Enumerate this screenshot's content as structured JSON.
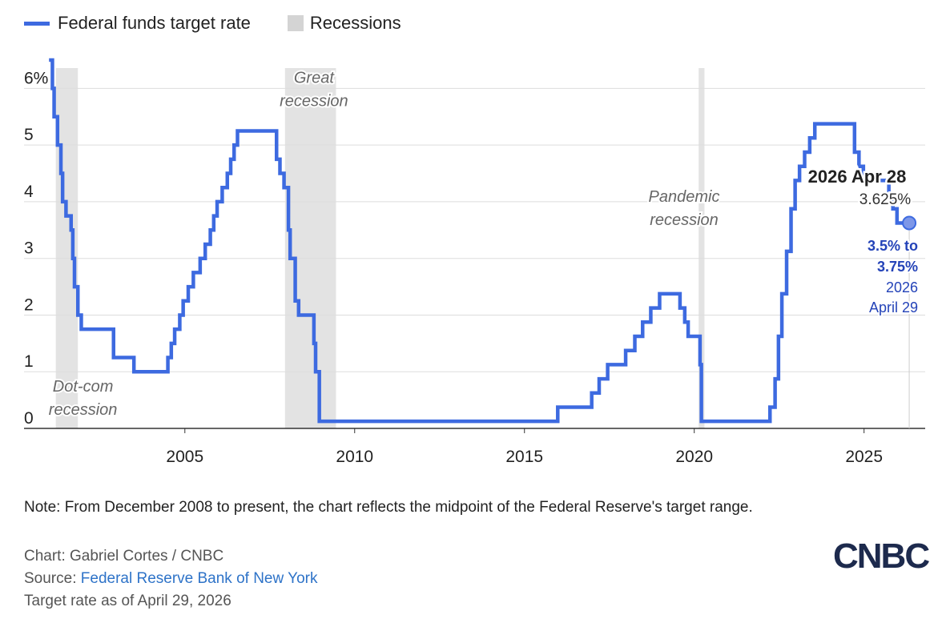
{
  "legend": {
    "series_label": "Federal funds target rate",
    "recessions_label": "Recessions"
  },
  "colors": {
    "line": "#3d6ae0",
    "recession": "#e3e3e3",
    "annotation": "#2443b8"
  },
  "chart_data": {
    "type": "line",
    "xlim": [
      2000.5,
      2026.8
    ],
    "ylim": [
      0,
      6.5
    ],
    "y_ticks": [
      {
        "v": 0,
        "label": "0"
      },
      {
        "v": 1,
        "label": "1"
      },
      {
        "v": 2,
        "label": "2"
      },
      {
        "v": 3,
        "label": "3"
      },
      {
        "v": 4,
        "label": "4"
      },
      {
        "v": 5,
        "label": "5"
      },
      {
        "v": 6,
        "label": "6%"
      }
    ],
    "x_ticks": [
      {
        "v": 2005,
        "label": "2005"
      },
      {
        "v": 2010,
        "label": "2010"
      },
      {
        "v": 2015,
        "label": "2015"
      },
      {
        "v": 2020,
        "label": "2020"
      },
      {
        "v": 2025,
        "label": "2025"
      }
    ],
    "recessions": [
      {
        "start": 2001.2,
        "end": 2001.85,
        "label_lines": [
          "Dot-com",
          "recession"
        ],
        "label_x": 2002.0,
        "label_y": 0.65
      },
      {
        "start": 2007.95,
        "end": 2009.45,
        "label_lines": [
          "Great",
          "recession"
        ],
        "label_x": 2008.8,
        "label_y": 6.1
      },
      {
        "start": 2020.13,
        "end": 2020.3,
        "label_lines": [
          "Pandemic",
          "recession"
        ],
        "label_x": 2019.7,
        "label_y": 4.0
      }
    ],
    "series": [
      {
        "steps": [
          [
            2001.0,
            6.5
          ],
          [
            2001.1,
            6.0
          ],
          [
            2001.15,
            5.5
          ],
          [
            2001.25,
            5.0
          ],
          [
            2001.35,
            4.5
          ],
          [
            2001.4,
            4.0
          ],
          [
            2001.5,
            3.75
          ],
          [
            2001.65,
            3.5
          ],
          [
            2001.7,
            3.0
          ],
          [
            2001.75,
            2.5
          ],
          [
            2001.85,
            2.0
          ],
          [
            2001.95,
            1.75
          ],
          [
            2002.9,
            1.25
          ],
          [
            2003.5,
            1.0
          ],
          [
            2004.5,
            1.25
          ],
          [
            2004.6,
            1.5
          ],
          [
            2004.7,
            1.75
          ],
          [
            2004.85,
            2.0
          ],
          [
            2004.95,
            2.25
          ],
          [
            2005.1,
            2.5
          ],
          [
            2005.25,
            2.75
          ],
          [
            2005.45,
            3.0
          ],
          [
            2005.6,
            3.25
          ],
          [
            2005.75,
            3.5
          ],
          [
            2005.85,
            3.75
          ],
          [
            2005.95,
            4.0
          ],
          [
            2006.1,
            4.25
          ],
          [
            2006.25,
            4.5
          ],
          [
            2006.35,
            4.75
          ],
          [
            2006.45,
            5.0
          ],
          [
            2006.55,
            5.25
          ],
          [
            2007.7,
            4.75
          ],
          [
            2007.8,
            4.5
          ],
          [
            2007.92,
            4.25
          ],
          [
            2008.05,
            3.5
          ],
          [
            2008.1,
            3.0
          ],
          [
            2008.25,
            2.25
          ],
          [
            2008.35,
            2.0
          ],
          [
            2008.8,
            1.5
          ],
          [
            2008.85,
            1.0
          ],
          [
            2008.96,
            0.125
          ],
          [
            2015.98,
            0.375
          ],
          [
            2016.98,
            0.625
          ],
          [
            2017.2,
            0.875
          ],
          [
            2017.45,
            1.125
          ],
          [
            2017.98,
            1.375
          ],
          [
            2018.25,
            1.625
          ],
          [
            2018.48,
            1.875
          ],
          [
            2018.72,
            2.125
          ],
          [
            2018.98,
            2.375
          ],
          [
            2019.58,
            2.125
          ],
          [
            2019.72,
            1.875
          ],
          [
            2019.82,
            1.625
          ],
          [
            2020.17,
            1.125
          ],
          [
            2020.21,
            0.125
          ],
          [
            2022.23,
            0.375
          ],
          [
            2022.38,
            0.875
          ],
          [
            2022.48,
            1.625
          ],
          [
            2022.58,
            2.375
          ],
          [
            2022.72,
            3.125
          ],
          [
            2022.85,
            3.875
          ],
          [
            2022.97,
            4.375
          ],
          [
            2023.1,
            4.625
          ],
          [
            2023.25,
            4.875
          ],
          [
            2023.4,
            5.125
          ],
          [
            2023.55,
            5.375
          ],
          [
            2024.72,
            4.875
          ],
          [
            2024.85,
            4.625
          ],
          [
            2024.98,
            4.375
          ],
          [
            2025.73,
            4.125
          ],
          [
            2025.85,
            3.875
          ],
          [
            2025.97,
            3.625
          ],
          [
            2026.33,
            3.625
          ]
        ]
      }
    ],
    "hover": {
      "date_label": "2026 Apr 28",
      "value_label": "3.625%"
    },
    "end_annotation": {
      "range_line1": "3.5% to",
      "range_line2": "3.75%",
      "date_line1": "2026",
      "date_line2": "April 29"
    }
  },
  "footer": {
    "note": "Note: From December 2008 to present, the chart reflects the midpoint of the Federal Reserve's target range.",
    "chart_credit": "Chart: Gabriel Cortes / CNBC",
    "source_prefix": "Source: ",
    "source_link": "Federal Reserve Bank of New York",
    "as_of": "Target rate as of April 29, 2026"
  },
  "logo": {
    "text": "CNBC"
  }
}
